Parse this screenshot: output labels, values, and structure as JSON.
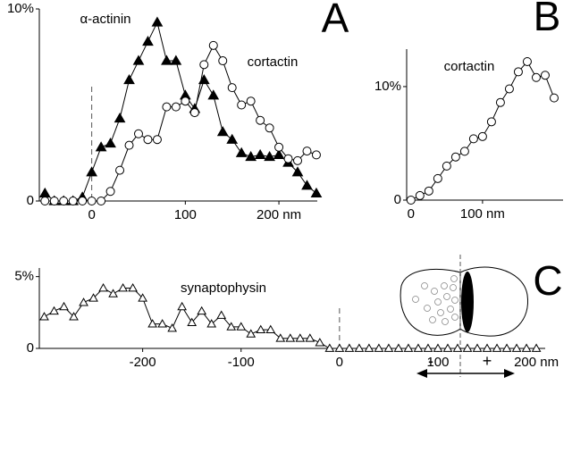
{
  "chart_data": [
    {
      "type": "line",
      "panel_label": "A",
      "xlim": [
        -56,
        241
      ],
      "ylim": [
        0,
        10
      ],
      "xticks": [
        0,
        100,
        {
          "value": 200,
          "label": "200 nm"
        }
      ],
      "yticks": [
        0,
        {
          "value": 10,
          "label": "10%"
        }
      ],
      "vline": 0,
      "series": [
        {
          "name": "α-actinin",
          "color": "#000000",
          "marker": "triangle",
          "marker_fill": "#000000",
          "x": [
            -50,
            -40,
            -30,
            -20,
            -10,
            0,
            10,
            20,
            30,
            40,
            50,
            60,
            70,
            80,
            90,
            100,
            110,
            120,
            130,
            140,
            150,
            160,
            170,
            180,
            190,
            200,
            210,
            220,
            230,
            240
          ],
          "values": [
            0.4,
            0,
            0,
            0,
            0.2,
            1.5,
            2.8,
            3.0,
            4.3,
            6.3,
            7.3,
            8.3,
            9.3,
            7.3,
            7.3,
            5.5,
            4.8,
            6.3,
            5.5,
            3.6,
            3.2,
            2.5,
            2.3,
            2.4,
            2.3,
            2.4,
            2.0,
            1.5,
            0.8,
            0.4
          ]
        },
        {
          "name": "cortactin",
          "color": "#000000",
          "marker": "circle",
          "marker_fill": "#ffffff",
          "x": [
            -50,
            -40,
            -30,
            -20,
            -10,
            0,
            10,
            20,
            30,
            40,
            50,
            60,
            70,
            80,
            90,
            100,
            110,
            120,
            130,
            140,
            150,
            160,
            170,
            180,
            190,
            200,
            210,
            220,
            230,
            240
          ],
          "values": [
            0,
            0,
            0,
            0,
            0,
            0,
            0,
            0.5,
            1.6,
            2.9,
            3.5,
            3.2,
            3.2,
            4.9,
            4.9,
            5.2,
            4.6,
            7.1,
            8.1,
            7.3,
            5.9,
            5.0,
            5.2,
            4.2,
            3.8,
            2.8,
            2.2,
            2.1,
            2.6,
            2.4
          ]
        }
      ]
    },
    {
      "type": "line",
      "panel_label": "B",
      "xlim": [
        -6,
        212.5
      ],
      "ylim": [
        0,
        13.3
      ],
      "xticks": [
        0,
        {
          "value": 100,
          "label": "100 nm"
        }
      ],
      "yticks": [
        0,
        {
          "value": 10,
          "label": "10%"
        }
      ],
      "series": [
        {
          "name": "cortactin",
          "color": "#000000",
          "marker": "circle",
          "marker_fill": "#ffffff",
          "x": [
            0,
            12.5,
            25,
            37.5,
            50,
            62.5,
            75,
            87.5,
            100,
            112.5,
            125,
            137.5,
            150,
            162.5,
            175,
            187.5,
            200
          ],
          "values": [
            0,
            0.4,
            0.8,
            1.9,
            3.0,
            3.8,
            4.3,
            5.4,
            5.6,
            6.9,
            8.6,
            9.8,
            11.3,
            12.2,
            10.8,
            11.0,
            9.0
          ]
        }
      ]
    },
    {
      "type": "line",
      "panel_label": "C",
      "xlim": [
        -305,
        209
      ],
      "ylim": [
        0,
        5.6
      ],
      "xticks": [
        -200,
        -100,
        0,
        100,
        {
          "value": 200,
          "label": "200 nm"
        }
      ],
      "yticks": [
        0,
        {
          "value": 5,
          "label": "5%"
        }
      ],
      "vline": 0,
      "minus_label": "-",
      "plus_label": "+",
      "series": [
        {
          "name": "synaptophysin",
          "color": "#000000",
          "marker": "triangle",
          "marker_fill": "#ffffff",
          "x": [
            -300,
            -290,
            -280,
            -270,
            -260,
            -250,
            -240,
            -230,
            -220,
            -210,
            -200,
            -190,
            -180,
            -170,
            -160,
            -150,
            -140,
            -130,
            -120,
            -110,
            -100,
            -90,
            -80,
            -70,
            -60,
            -50,
            -40,
            -30,
            -20,
            -10,
            0,
            10,
            20,
            30,
            40,
            50,
            60,
            70,
            80,
            90,
            100,
            110,
            120,
            130,
            140,
            150,
            160,
            170,
            180,
            190,
            200
          ],
          "values": [
            2.2,
            2.6,
            2.9,
            2.2,
            3.2,
            3.5,
            4.2,
            3.8,
            4.2,
            4.2,
            3.5,
            1.7,
            1.7,
            1.4,
            2.9,
            1.8,
            2.6,
            1.7,
            2.3,
            1.5,
            1.5,
            1.0,
            1.3,
            1.3,
            0.7,
            0.7,
            0.7,
            0.7,
            0.4,
            0,
            0,
            0,
            0,
            0,
            0,
            0,
            0,
            0,
            0,
            0,
            0,
            0,
            0,
            0,
            0,
            0,
            0,
            0,
            0,
            0,
            0
          ]
        }
      ]
    }
  ]
}
